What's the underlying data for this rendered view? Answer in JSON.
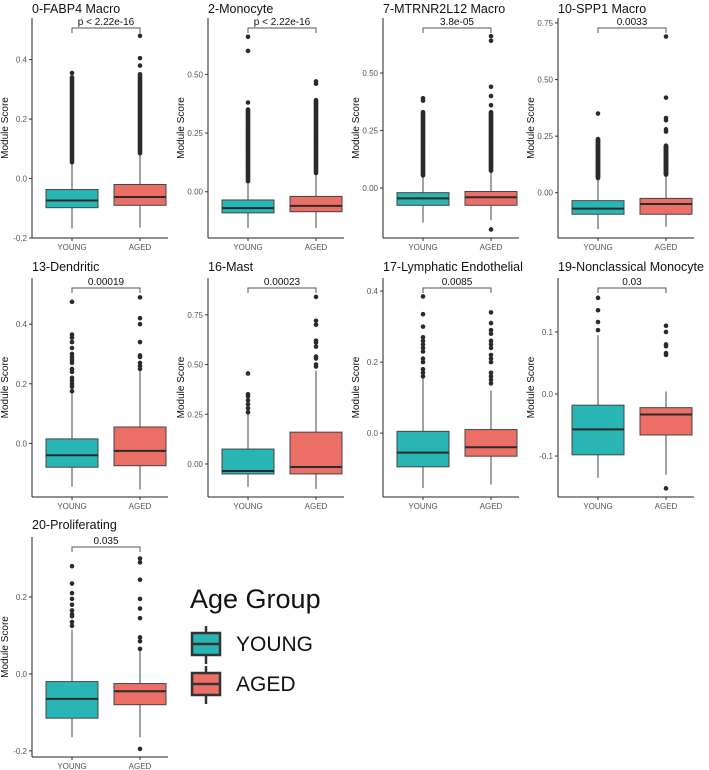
{
  "chart_data": [
    {
      "type": "box",
      "title": "0-FABP4 Macro",
      "ylabel": "Module Score",
      "categories": [
        "YOUNG",
        "AGED"
      ],
      "ylim": [
        -0.2,
        0.54
      ],
      "yticks": [
        -0.2,
        0.0,
        0.2,
        0.4
      ],
      "ytick_labels": [
        "-0.2",
        "0.0",
        "0.2",
        "0.4"
      ],
      "pvalue": "p < 2.22e-16",
      "series": [
        {
          "name": "YOUNG",
          "min": -0.168,
          "q1": -0.098,
          "median": -0.074,
          "q3": -0.037,
          "max": 0.055,
          "outlier_range": [
            0.055,
            0.345
          ],
          "outliers": [
            0.355
          ]
        },
        {
          "name": "AGED",
          "min": -0.165,
          "q1": -0.09,
          "median": -0.062,
          "q3": -0.02,
          "max": 0.085,
          "outlier_range": [
            0.085,
            0.355
          ],
          "outliers": [
            0.38,
            0.405,
            0.48
          ]
        }
      ]
    },
    {
      "type": "box",
      "title": "2-Monocyte",
      "ylabel": "Module Score",
      "categories": [
        "YOUNG",
        "AGED"
      ],
      "ylim": [
        -0.197,
        0.74
      ],
      "yticks": [
        0.0,
        0.25,
        0.5
      ],
      "ytick_labels": [
        "0.00",
        "0.25",
        "0.50"
      ],
      "pvalue": "p < 2.22e-16",
      "series": [
        {
          "name": "YOUNG",
          "min": -0.155,
          "q1": -0.09,
          "median": -0.07,
          "q3": -0.035,
          "max": 0.045,
          "outlier_range": [
            0.045,
            0.35
          ],
          "outliers": [
            0.38,
            0.6,
            0.66
          ]
        },
        {
          "name": "AGED",
          "min": -0.155,
          "q1": -0.085,
          "median": -0.06,
          "q3": -0.02,
          "max": 0.08,
          "outlier_range": [
            0.08,
            0.39
          ],
          "outliers": [
            0.46,
            0.47
          ]
        }
      ]
    },
    {
      "type": "box",
      "title": "7-MTRNR2L12 Macro",
      "ylabel": "Module Score",
      "categories": [
        "YOUNG",
        "AGED"
      ],
      "ylim": [
        -0.217,
        0.739
      ],
      "yticks": [
        0.0,
        0.25,
        0.5
      ],
      "ytick_labels": [
        "0.00",
        "0.25",
        "0.50"
      ],
      "pvalue": "3.8e-05",
      "series": [
        {
          "name": "YOUNG",
          "min": -0.15,
          "q1": -0.075,
          "median": -0.045,
          "q3": -0.02,
          "max": 0.055,
          "outlier_range": [
            0.055,
            0.33
          ],
          "outliers": [
            0.38,
            0.39
          ]
        },
        {
          "name": "AGED",
          "min": -0.14,
          "q1": -0.075,
          "median": -0.04,
          "q3": -0.015,
          "max": 0.075,
          "outlier_range": [
            0.075,
            0.33
          ],
          "outliers": [
            0.36,
            0.4,
            0.44,
            0.64,
            0.66,
            -0.18
          ]
        }
      ]
    },
    {
      "type": "box",
      "title": "10-SPP1 Macro",
      "ylabel": "Module Score",
      "categories": [
        "YOUNG",
        "AGED"
      ],
      "ylim": [
        -0.2,
        0.772
      ],
      "yticks": [
        0.0,
        0.25,
        0.5,
        0.75
      ],
      "ytick_labels": [
        "0.00",
        "0.25",
        "0.50",
        "0.75"
      ],
      "pvalue": "0.0033",
      "series": [
        {
          "name": "YOUNG",
          "min": -0.16,
          "q1": -0.095,
          "median": -0.07,
          "q3": -0.035,
          "max": 0.065,
          "outlier_range": [
            0.065,
            0.24
          ],
          "outliers": [
            0.35
          ]
        },
        {
          "name": "AGED",
          "min": -0.15,
          "q1": -0.095,
          "median": -0.05,
          "q3": -0.025,
          "max": 0.08,
          "outlier_range": [
            0.08,
            0.21
          ],
          "outliers": [
            0.27,
            0.28,
            0.32,
            0.33,
            0.42,
            0.69
          ]
        }
      ]
    },
    {
      "type": "box",
      "title": "13-Dendritic",
      "ylabel": "Module Score",
      "categories": [
        "YOUNG",
        "AGED"
      ],
      "ylim": [
        -0.18,
        0.555
      ],
      "yticks": [
        0.0,
        0.2,
        0.4
      ],
      "ytick_labels": [
        "0.0",
        "0.2",
        "0.4"
      ],
      "pvalue": "0.00019",
      "series": [
        {
          "name": "YOUNG",
          "min": -0.145,
          "q1": -0.08,
          "median": -0.04,
          "q3": 0.015,
          "max": 0.17,
          "outliers": [
            0.175,
            0.19,
            0.2,
            0.21,
            0.22,
            0.24,
            0.25,
            0.27,
            0.28,
            0.29,
            0.3,
            0.32,
            0.34,
            0.355,
            0.365,
            0.475
          ]
        },
        {
          "name": "AGED",
          "min": -0.155,
          "q1": -0.075,
          "median": -0.025,
          "q3": 0.055,
          "max": 0.245,
          "outliers": [
            0.25,
            0.26,
            0.27,
            0.29,
            0.295,
            0.34,
            0.4,
            0.42,
            0.49
          ]
        }
      ]
    },
    {
      "type": "box",
      "title": "16-Mast",
      "ylabel": "Module Score",
      "categories": [
        "YOUNG",
        "AGED"
      ],
      "ylim": [
        -0.166,
        0.935
      ],
      "yticks": [
        0.0,
        0.25,
        0.5,
        0.75
      ],
      "ytick_labels": [
        "0.00",
        "0.25",
        "0.50",
        "0.75"
      ],
      "pvalue": "0.00023",
      "series": [
        {
          "name": "YOUNG",
          "min": -0.115,
          "q1": -0.05,
          "median": -0.035,
          "q3": 0.075,
          "max": 0.255,
          "outliers": [
            0.26,
            0.28,
            0.3,
            0.32,
            0.34,
            0.35,
            0.455
          ]
        },
        {
          "name": "AGED",
          "min": -0.125,
          "q1": -0.05,
          "median": -0.015,
          "q3": 0.16,
          "max": 0.47,
          "outliers": [
            0.49,
            0.5,
            0.53,
            0.54,
            0.59,
            0.61,
            0.62,
            0.7,
            0.72,
            0.84
          ]
        }
      ]
    },
    {
      "type": "box",
      "title": "17-Lymphatic Endothelial",
      "ylabel": "Module Score",
      "categories": [
        "YOUNG",
        "AGED"
      ],
      "ylim": [
        -0.18,
        0.437
      ],
      "yticks": [
        0.0,
        0.2,
        0.4
      ],
      "ytick_labels": [
        "0.0",
        "0.2",
        "0.4"
      ],
      "pvalue": "0.0085",
      "series": [
        {
          "name": "YOUNG",
          "min": -0.155,
          "q1": -0.095,
          "median": -0.055,
          "q3": 0.005,
          "max": 0.155,
          "outliers": [
            0.16,
            0.17,
            0.18,
            0.2,
            0.21,
            0.23,
            0.24,
            0.25,
            0.26,
            0.27,
            0.3,
            0.335,
            0.385
          ]
        },
        {
          "name": "AGED",
          "min": -0.145,
          "q1": -0.065,
          "median": -0.04,
          "q3": 0.01,
          "max": 0.12,
          "outliers": [
            0.14,
            0.15,
            0.16,
            0.17,
            0.2,
            0.21,
            0.22,
            0.24,
            0.25,
            0.26,
            0.28,
            0.29,
            0.31,
            0.34
          ]
        }
      ]
    },
    {
      "type": "box",
      "title": "19-Nonclassical Monocyte",
      "ylabel": "Module Score",
      "categories": [
        "YOUNG",
        "AGED"
      ],
      "ylim": [
        -0.166,
        0.187
      ],
      "yticks": [
        -0.1,
        0.0,
        0.1
      ],
      "ytick_labels": [
        "-0.1",
        "0.0",
        "0.1"
      ],
      "pvalue": "0.03",
      "series": [
        {
          "name": "YOUNG",
          "min": -0.135,
          "q1": -0.098,
          "median": -0.057,
          "q3": -0.018,
          "max": 0.095,
          "outliers": [
            0.103,
            0.116,
            0.135,
            0.155
          ]
        },
        {
          "name": "AGED",
          "min": -0.13,
          "q1": -0.066,
          "median": -0.033,
          "q3": -0.022,
          "max": 0.004,
          "outliers": [
            0.063,
            0.066,
            0.077,
            0.08,
            0.1,
            0.11,
            -0.152
          ]
        }
      ]
    },
    {
      "type": "box",
      "title": "20-Proliferating",
      "ylabel": "Module Score",
      "categories": [
        "YOUNG",
        "AGED"
      ],
      "ylim": [
        -0.216,
        0.356
      ],
      "yticks": [
        -0.2,
        0.0,
        0.2
      ],
      "ytick_labels": [
        "-0.2",
        "0.0",
        "0.2"
      ],
      "pvalue": "0.035",
      "series": [
        {
          "name": "YOUNG",
          "min": -0.165,
          "q1": -0.115,
          "median": -0.065,
          "q3": -0.02,
          "max": 0.115,
          "outliers": [
            0.125,
            0.135,
            0.15,
            0.155,
            0.165,
            0.18,
            0.195,
            0.21,
            0.235,
            0.28
          ]
        },
        {
          "name": "AGED",
          "min": -0.165,
          "q1": -0.08,
          "median": -0.045,
          "q3": -0.025,
          "max": 0.06,
          "outliers": [
            0.065,
            0.085,
            0.095,
            0.145,
            0.17,
            0.195,
            0.245,
            0.29,
            0.3,
            -0.195
          ]
        }
      ]
    }
  ],
  "legend": {
    "title": "Age Group",
    "items": [
      {
        "label": "YOUNG",
        "color": "#2AB5B5"
      },
      {
        "label": "AGED",
        "color": "#EC6F67"
      }
    ]
  },
  "colors": {
    "YOUNG": "#2AB5B5",
    "AGED": "#EC6F67"
  }
}
